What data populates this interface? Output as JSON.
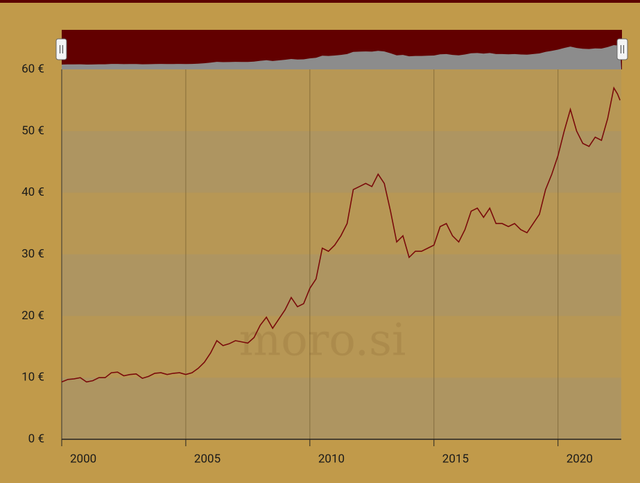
{
  "chart_data": {
    "type": "line",
    "watermark": "moro.si",
    "x": [
      2000.0,
      2000.25,
      2000.5,
      2000.75,
      2001.0,
      2001.25,
      2001.5,
      2001.75,
      2002.0,
      2002.25,
      2002.5,
      2002.75,
      2003.0,
      2003.25,
      2003.5,
      2003.75,
      2004.0,
      2004.25,
      2004.5,
      2004.75,
      2005.0,
      2005.25,
      2005.5,
      2005.75,
      2006.0,
      2006.25,
      2006.5,
      2006.75,
      2007.0,
      2007.25,
      2007.5,
      2007.75,
      2008.0,
      2008.25,
      2008.5,
      2008.75,
      2009.0,
      2009.25,
      2009.5,
      2009.75,
      2010.0,
      2010.25,
      2010.5,
      2010.75,
      2011.0,
      2011.25,
      2011.5,
      2011.75,
      2012.0,
      2012.25,
      2012.5,
      2012.75,
      2013.0,
      2013.25,
      2013.5,
      2013.75,
      2014.0,
      2014.25,
      2014.5,
      2014.75,
      2015.0,
      2015.25,
      2015.5,
      2015.75,
      2016.0,
      2016.25,
      2016.5,
      2016.75,
      2017.0,
      2017.25,
      2017.5,
      2017.75,
      2018.0,
      2018.25,
      2018.5,
      2018.75,
      2019.0,
      2019.25,
      2019.5,
      2019.75,
      2020.0,
      2020.25,
      2020.5,
      2020.75,
      2021.0,
      2021.25,
      2021.5,
      2021.75,
      2022.0,
      2022.25,
      2022.4,
      2022.5
    ],
    "series": [
      {
        "color": "#7a0a0a",
        "values": [
          9.3,
          9.7,
          9.8,
          10.0,
          9.3,
          9.5,
          10.0,
          10.0,
          10.8,
          10.9,
          10.3,
          10.5,
          10.6,
          9.9,
          10.2,
          10.7,
          10.8,
          10.5,
          10.7,
          10.8,
          10.5,
          10.8,
          11.5,
          12.5,
          14.0,
          16.0,
          15.2,
          15.5,
          16.0,
          15.8,
          15.6,
          16.5,
          18.5,
          19.8,
          18.0,
          19.5,
          21.0,
          23.0,
          21.5,
          22.0,
          24.5,
          26.0,
          31.0,
          30.5,
          31.5,
          33.0,
          35.0,
          40.5,
          41.0,
          41.5,
          41.0,
          43.0,
          41.5,
          37.0,
          32.0,
          33.0,
          29.5,
          30.5,
          30.5,
          31.0,
          31.5,
          34.5,
          35.0,
          33.0,
          32.0,
          34.0,
          37.0,
          37.5,
          36.0,
          37.5,
          35.0,
          35.0,
          34.5,
          35.0,
          34.0,
          33.5,
          35.0,
          36.5,
          40.5,
          43.0,
          46.0,
          50.0,
          53.5,
          50.0,
          48.0,
          47.5,
          49.0,
          48.5,
          52.0,
          57.0,
          56.0,
          55.0
        ]
      }
    ],
    "xlim": [
      2000,
      2022.55
    ],
    "xticks": [
      2000,
      2005,
      2010,
      2015,
      2020
    ],
    "ylim": [
      0,
      60
    ],
    "yticks": [
      {
        "value": 0,
        "label": "0 €"
      },
      {
        "value": 10,
        "label": "10 €"
      },
      {
        "value": 20,
        "label": "20 €"
      },
      {
        "value": 30,
        "label": "30 €"
      },
      {
        "value": 40,
        "label": "40 €"
      },
      {
        "value": 50,
        "label": "50 €"
      },
      {
        "value": 60,
        "label": "60 €"
      }
    ],
    "grid": true
  }
}
